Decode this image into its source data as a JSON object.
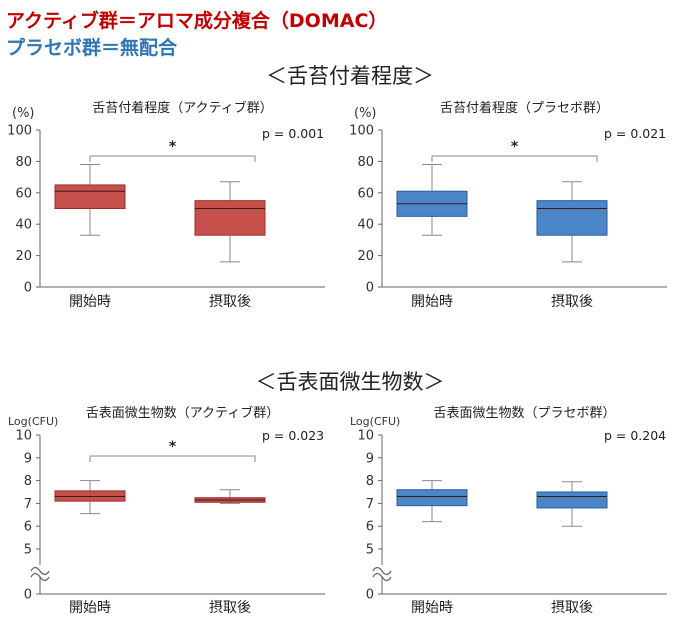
{
  "legend": {
    "active": "アクティブ群＝アロマ成分複合（DOMAC）",
    "placebo": "プラセボ群＝無配合",
    "active_color": "#c00000",
    "placebo_color": "#2e75b6"
  },
  "sections": [
    {
      "title": "＜舌苔付着程度＞"
    },
    {
      "title": "＜舌表面微生物数＞"
    }
  ],
  "colors": {
    "active_box": "#c5504b",
    "active_edge": "#a02c28",
    "placebo_box": "#4a86c8",
    "placebo_edge": "#2a5f9a"
  },
  "chart_data": [
    {
      "type": "box",
      "title": "舌苔付着程度（アクティブ群）",
      "ylabel": "(%)",
      "ylim": [
        0,
        100
      ],
      "yticks": [
        "0",
        "20",
        "40",
        "60",
        "80",
        "100"
      ],
      "categories": [
        "開始時",
        "摂取後"
      ],
      "boxes": [
        {
          "min": 33,
          "q1": 50,
          "median": 61,
          "q3": 65,
          "max": 78
        },
        {
          "min": 16,
          "q1": 33,
          "median": 50,
          "q3": 55,
          "max": 67
        }
      ],
      "p_value": "p = 0.001",
      "significance": "*",
      "group": "active"
    },
    {
      "type": "box",
      "title": "舌苔付着程度（プラセボ群）",
      "ylabel": "(%)",
      "ylim": [
        0,
        100
      ],
      "yticks": [
        "0",
        "20",
        "40",
        "60",
        "80",
        "100"
      ],
      "categories": [
        "開始時",
        "摂取後"
      ],
      "boxes": [
        {
          "min": 33,
          "q1": 45,
          "median": 53,
          "q3": 61,
          "max": 78
        },
        {
          "min": 16,
          "q1": 33,
          "median": 50,
          "q3": 55,
          "max": 67
        }
      ],
      "p_value": "p = 0.021",
      "significance": "*",
      "group": "placebo"
    },
    {
      "type": "box",
      "title": "舌表面微生物数（アクティブ群）",
      "ylabel": "Log(CFU)",
      "ylim": [
        4,
        10
      ],
      "axis_break": true,
      "yticks": [
        "0",
        "5",
        "6",
        "7",
        "8",
        "9",
        "10"
      ],
      "categories": [
        "開始時",
        "摂取後"
      ],
      "boxes": [
        {
          "min": 6.55,
          "q1": 7.1,
          "median": 7.3,
          "q3": 7.55,
          "max": 8.0
        },
        {
          "min": 7.0,
          "q1": 7.05,
          "median": 7.15,
          "q3": 7.25,
          "max": 7.6
        }
      ],
      "p_value": "p = 0.023",
      "significance": "*",
      "group": "active"
    },
    {
      "type": "box",
      "title": "舌表面微生物数（プラセボ群）",
      "ylabel": "Log(CFU)",
      "ylim": [
        4,
        10
      ],
      "axis_break": true,
      "yticks": [
        "0",
        "5",
        "6",
        "7",
        "8",
        "9",
        "10"
      ],
      "categories": [
        "開始時",
        "摂取後"
      ],
      "boxes": [
        {
          "min": 6.2,
          "q1": 6.9,
          "median": 7.3,
          "q3": 7.6,
          "max": 8.0
        },
        {
          "min": 6.0,
          "q1": 6.8,
          "median": 7.3,
          "q3": 7.5,
          "max": 7.95
        }
      ],
      "p_value": "p = 0.204",
      "significance": "",
      "group": "placebo"
    }
  ]
}
